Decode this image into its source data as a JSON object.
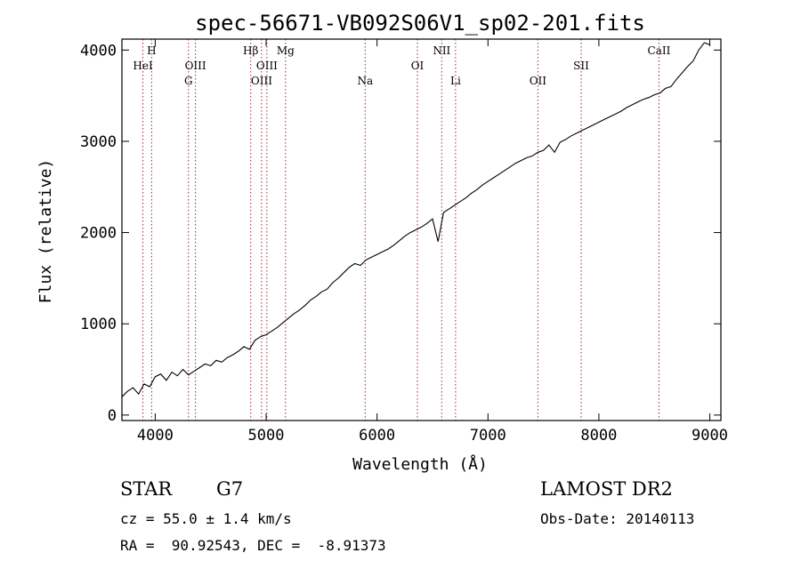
{
  "chart_data": {
    "type": "line",
    "title": "spec-56671-VB092S06V1_sp02-201.fits",
    "xlabel": "Wavelength (Å)",
    "ylabel": "Flux (relative)",
    "xlim": [
      3700,
      9100
    ],
    "ylim": [
      -60,
      4120
    ],
    "xticks": [
      4000,
      5000,
      6000,
      7000,
      8000,
      9000
    ],
    "yticks": [
      0,
      1000,
      2000,
      3000,
      4000
    ],
    "line_color": "#000000",
    "marker_color": "#a0282a",
    "series": [
      {
        "x": [
          3700,
          3750,
          3800,
          3850,
          3900,
          3950,
          4000,
          4050,
          4100,
          4150,
          4200,
          4250,
          4300,
          4350,
          4400,
          4450,
          4500,
          4550,
          4600,
          4650,
          4700,
          4750,
          4800,
          4850,
          4900,
          4950,
          5000,
          5050,
          5100,
          5150,
          5200,
          5250,
          5300,
          5350,
          5400,
          5450,
          5500,
          5550,
          5600,
          5650,
          5700,
          5750,
          5800,
          5850,
          5900,
          5950,
          6000,
          6050,
          6100,
          6150,
          6200,
          6250,
          6300,
          6350,
          6400,
          6450,
          6500,
          6550,
          6600,
          6650,
          6700,
          6750,
          6800,
          6850,
          6900,
          6950,
          7000,
          7050,
          7100,
          7150,
          7200,
          7250,
          7300,
          7350,
          7400,
          7450,
          7500,
          7550,
          7600,
          7650,
          7700,
          7750,
          7800,
          7850,
          7900,
          7950,
          8000,
          8050,
          8100,
          8150,
          8200,
          8250,
          8300,
          8350,
          8400,
          8450,
          8500,
          8550,
          8600,
          8650,
          8700,
          8750,
          8800,
          8850,
          8900,
          8950,
          9000
        ],
        "y": [
          200,
          260,
          300,
          230,
          340,
          310,
          420,
          450,
          380,
          470,
          430,
          500,
          440,
          480,
          520,
          560,
          540,
          600,
          580,
          630,
          660,
          700,
          750,
          720,
          820,
          860,
          880,
          920,
          960,
          1010,
          1060,
          1110,
          1150,
          1200,
          1260,
          1300,
          1350,
          1380,
          1450,
          1500,
          1560,
          1620,
          1660,
          1640,
          1700,
          1730,
          1760,
          1790,
          1820,
          1860,
          1910,
          1960,
          2000,
          2030,
          2060,
          2100,
          2150,
          1900,
          2220,
          2260,
          2300,
          2340,
          2380,
          2430,
          2470,
          2520,
          2560,
          2600,
          2640,
          2680,
          2720,
          2760,
          2790,
          2820,
          2840,
          2880,
          2900,
          2960,
          2880,
          2990,
          3020,
          3060,
          3090,
          3120,
          3150,
          3180,
          3210,
          3240,
          3270,
          3300,
          3330,
          3370,
          3400,
          3430,
          3460,
          3480,
          3510,
          3530,
          3580,
          3600,
          3680,
          3750,
          3820,
          3880,
          4000,
          4080,
          4060
        ]
      }
    ],
    "spectral_lines": [
      {
        "label": "HeI",
        "x": 3889,
        "row": 2
      },
      {
        "label": "H",
        "x": 3968,
        "row": 1
      },
      {
        "label": "G",
        "x": 4300,
        "row": 3
      },
      {
        "label": "OIII",
        "x": 4363,
        "row": 2
      },
      {
        "label": "Hβ",
        "x": 4861,
        "row": 1
      },
      {
        "label": "OIII",
        "x": 4959,
        "row": 3
      },
      {
        "label": "OIII",
        "x": 5007,
        "row": 2
      },
      {
        "label": "Mg",
        "x": 5175,
        "row": 1
      },
      {
        "label": "Na",
        "x": 5893,
        "row": 3
      },
      {
        "label": "OI",
        "x": 6364,
        "row": 2
      },
      {
        "label": "NII",
        "x": 6583,
        "row": 1
      },
      {
        "label": "Li",
        "x": 6708,
        "row": 3
      },
      {
        "label": "OII",
        "x": 7450,
        "row": 3
      },
      {
        "label": "SII",
        "x": 7840,
        "row": 2
      },
      {
        "label": "CaII",
        "x": 8542,
        "row": 1
      }
    ]
  },
  "info": {
    "class": "STAR",
    "subclass": "G7",
    "survey": "LAMOST DR2",
    "cz": "cz = 55.0 ± 1.4 km/s",
    "obs_date": "Obs-Date: 20140113",
    "coords": "RA =  90.92543, DEC =  -8.91373"
  }
}
